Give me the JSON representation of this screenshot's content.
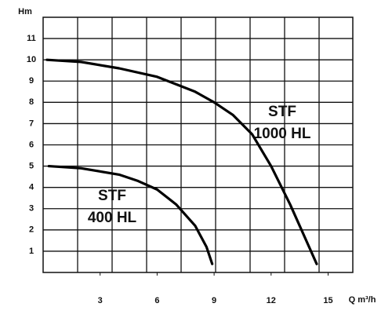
{
  "chart_data": {
    "type": "line",
    "y_label": "Hm",
    "x_label": "Q m³/h",
    "xlim": [
      0,
      16.3
    ],
    "ylim": [
      0,
      12
    ],
    "xticks": [
      3,
      6,
      9,
      12,
      15
    ],
    "yticks": [
      1,
      2,
      3,
      4,
      5,
      6,
      7,
      8,
      9,
      10,
      11
    ],
    "grid": true,
    "series": [
      {
        "name": "STF 1000 HL",
        "line1": "STF",
        "line2": "1000 HL",
        "color": "#000000",
        "x": [
          0.2,
          2,
          4,
          6,
          8,
          9,
          10,
          11,
          12,
          13,
          14,
          14.4
        ],
        "values": [
          10,
          9.9,
          9.6,
          9.2,
          8.5,
          8.0,
          7.4,
          6.5,
          5.0,
          3.2,
          1.2,
          0.4
        ]
      },
      {
        "name": "STF 400 HL",
        "line1": "STF",
        "line2": "400 HL",
        "color": "#000000",
        "x": [
          0.3,
          2,
          4,
          5,
          6,
          7,
          8,
          8.6,
          8.9
        ],
        "values": [
          5,
          4.9,
          4.6,
          4.3,
          3.9,
          3.2,
          2.2,
          1.2,
          0.4
        ]
      }
    ]
  }
}
